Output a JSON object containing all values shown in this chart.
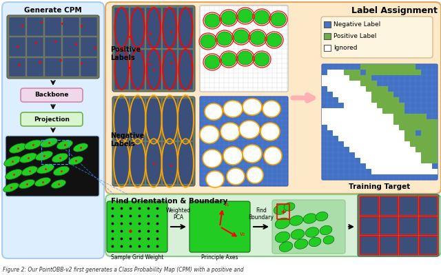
{
  "caption": "Figure 2: Our PointOBB-v2 first generates a Class Probability Map (CPM) with a positive and",
  "bg_color": "#ffffff",
  "light_blue_bg": "#ddeeff",
  "light_orange_bg": "#fde8c8",
  "light_green_bg": "#d8f0d8",
  "panel_titles": {
    "generate_cpm": "Generate CPM",
    "label_assignment": "Label Assignment",
    "find_orientation": "Find Orientation & Boundary",
    "positive_labels": "Positive\nLabels",
    "negative_labels": "Negative\nLabels",
    "training_target": "Training Target",
    "backbone": "Backbone",
    "projection": "Projection",
    "weighted_pca": "Weighted\nPCA",
    "find_boundary": "Find\nBoundary",
    "sample_grid_weight": "Sample Grid Weight",
    "principle_axes": "Principle Axes"
  },
  "legend_items": [
    {
      "label": "Negative Label",
      "color": "#4472c4"
    },
    {
      "label": "Positive Label",
      "color": "#70ad47"
    },
    {
      "label": "Ignored",
      "color": "#ffffff"
    }
  ],
  "solar_panel_color": "#3a4f7a",
  "solar_bg_color": "#6b7c5a",
  "blob_green": "#22cc22",
  "blob_edge": "#116611",
  "neg_grid_blue": "#4472c4",
  "tt_blue": "#4472c4"
}
